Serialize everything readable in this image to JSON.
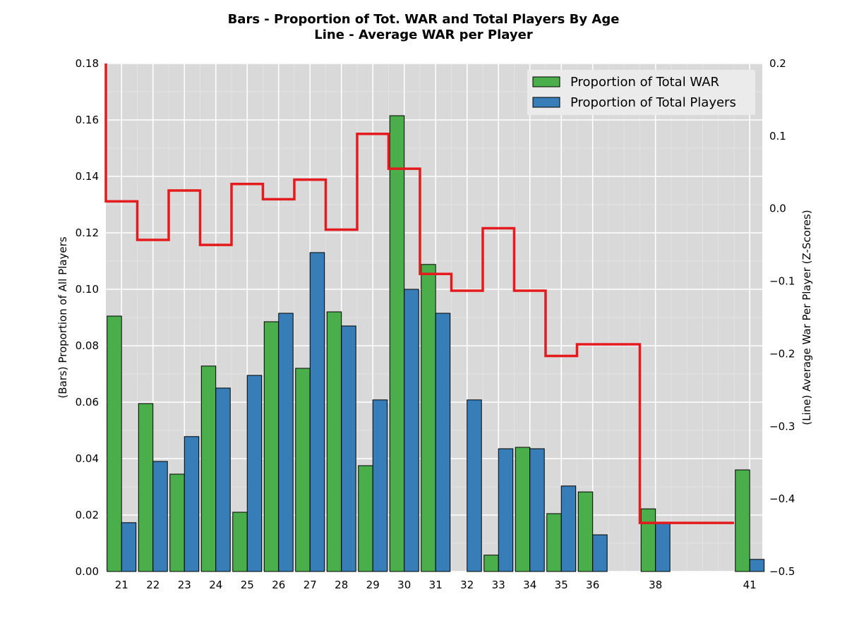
{
  "chart_data": {
    "type": "bar",
    "title": "Bars - Proportion of Tot. WAR and Total Players By Age",
    "subtitle": "Line - Average WAR per Player",
    "ylabel": "(Bars) Proportion of All Players",
    "y2label": "(Line) Average War Per Player (Z-Scores)",
    "x_tick_labels": [
      "21",
      "22",
      "23",
      "24",
      "25",
      "26",
      "27",
      "28",
      "29",
      "30",
      "31",
      "32",
      "33",
      "34",
      "35",
      "36",
      "38",
      "41"
    ],
    "y_ticks": [
      "0.00",
      "0.02",
      "0.04",
      "0.06",
      "0.08",
      "0.10",
      "0.12",
      "0.14",
      "0.16",
      "0.18"
    ],
    "y2_ticks": [
      "−0.5",
      "−0.4",
      "−0.3",
      "−0.2",
      "−0.1",
      "0.0",
      "0.1",
      "0.2"
    ],
    "ylim": [
      0,
      0.18
    ],
    "y2lim": [
      -0.5,
      0.2
    ],
    "xlim": [
      20.5,
      41.4
    ],
    "grid": true,
    "legend_position": "top-right",
    "bar_series": [
      {
        "name": "Proportion of Total WAR",
        "color": "#4aaf4a",
        "offset": -0.23,
        "points": [
          {
            "age": 21,
            "value": 0.0905
          },
          {
            "age": 22,
            "value": 0.0595
          },
          {
            "age": 23,
            "value": 0.0345
          },
          {
            "age": 24,
            "value": 0.0728
          },
          {
            "age": 25,
            "value": 0.021
          },
          {
            "age": 26,
            "value": 0.0885
          },
          {
            "age": 27,
            "value": 0.072
          },
          {
            "age": 28,
            "value": 0.092
          },
          {
            "age": 29,
            "value": 0.0375
          },
          {
            "age": 30,
            "value": 0.1615
          },
          {
            "age": 31,
            "value": 0.1088
          },
          {
            "age": 33,
            "value": 0.0058
          },
          {
            "age": 34,
            "value": 0.044
          },
          {
            "age": 35,
            "value": 0.0205
          },
          {
            "age": 36,
            "value": 0.0282
          },
          {
            "age": 38,
            "value": 0.0222
          },
          {
            "age": 41,
            "value": 0.036
          }
        ]
      },
      {
        "name": "Proportion of Total Players",
        "color": "#377eb8",
        "offset": 0.23,
        "points": [
          {
            "age": 21,
            "value": 0.0173
          },
          {
            "age": 22,
            "value": 0.039
          },
          {
            "age": 23,
            "value": 0.0478
          },
          {
            "age": 24,
            "value": 0.065
          },
          {
            "age": 25,
            "value": 0.0695
          },
          {
            "age": 26,
            "value": 0.0915
          },
          {
            "age": 27,
            "value": 0.113
          },
          {
            "age": 28,
            "value": 0.087
          },
          {
            "age": 29,
            "value": 0.0608
          },
          {
            "age": 30,
            "value": 0.1
          },
          {
            "age": 31,
            "value": 0.0915
          },
          {
            "age": 32,
            "value": 0.0608
          },
          {
            "age": 33,
            "value": 0.0435
          },
          {
            "age": 34,
            "value": 0.0435
          },
          {
            "age": 35,
            "value": 0.0303
          },
          {
            "age": 36,
            "value": 0.013
          },
          {
            "age": 38,
            "value": 0.0173
          },
          {
            "age": 41,
            "value": 0.0043
          }
        ]
      }
    ],
    "line_series": {
      "color": "#e41a1c",
      "start_value": 0.2,
      "steps": [
        {
          "from": 20.5,
          "to": 21.5,
          "value": 0.01
        },
        {
          "from": 21.5,
          "to": 22.5,
          "value": -0.043
        },
        {
          "from": 22.5,
          "to": 23.5,
          "value": 0.025
        },
        {
          "from": 23.5,
          "to": 24.5,
          "value": -0.05
        },
        {
          "from": 24.5,
          "to": 25.5,
          "value": 0.034
        },
        {
          "from": 25.5,
          "to": 26.5,
          "value": 0.013
        },
        {
          "from": 26.5,
          "to": 27.5,
          "value": 0.04
        },
        {
          "from": 27.5,
          "to": 28.5,
          "value": -0.029
        },
        {
          "from": 28.5,
          "to": 29.5,
          "value": 0.103
        },
        {
          "from": 29.5,
          "to": 30.5,
          "value": 0.055
        },
        {
          "from": 30.5,
          "to": 31.5,
          "value": -0.09
        },
        {
          "from": 31.5,
          "to": 32.5,
          "value": -0.113
        },
        {
          "from": 32.5,
          "to": 33.5,
          "value": -0.027
        },
        {
          "from": 33.5,
          "to": 34.5,
          "value": -0.113
        },
        {
          "from": 34.5,
          "to": 35.5,
          "value": -0.203
        },
        {
          "from": 35.5,
          "to": 37.5,
          "value": -0.187
        },
        {
          "from": 37.5,
          "to": 40.5,
          "value": -0.433
        }
      ]
    }
  }
}
